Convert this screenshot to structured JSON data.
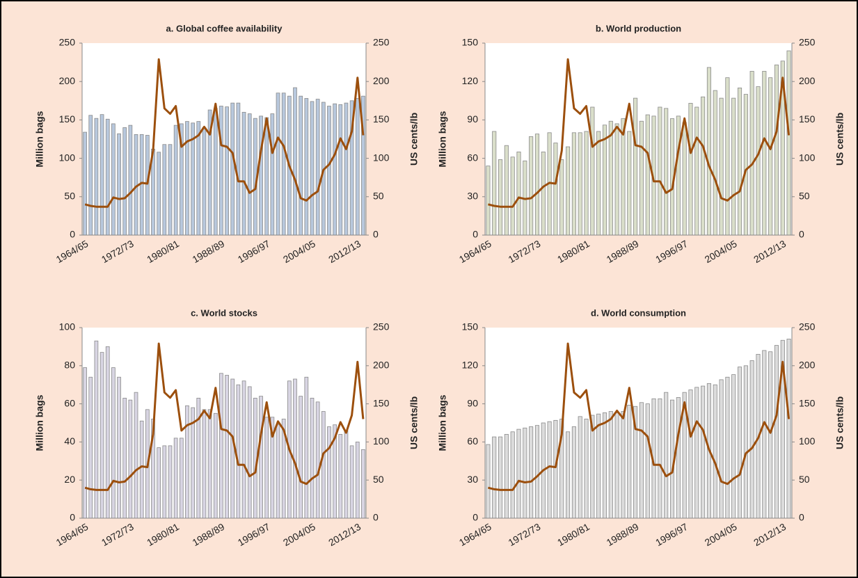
{
  "chart_data": [
    {
      "type": "bar",
      "title": "a. Global coffee availability",
      "y_label": "Million bags",
      "y2_label": "US cents/lb",
      "categories": [
        "1964/65",
        null,
        null,
        null,
        null,
        null,
        null,
        null,
        "1972/73",
        null,
        null,
        null,
        null,
        null,
        null,
        null,
        "1980/81",
        null,
        null,
        null,
        null,
        null,
        null,
        null,
        "1988/89",
        null,
        null,
        null,
        null,
        null,
        null,
        null,
        "1996/97",
        null,
        null,
        null,
        null,
        null,
        null,
        null,
        "2004/05",
        null,
        null,
        null,
        null,
        null,
        null,
        null,
        "2012/13",
        null
      ],
      "series": [
        {
          "color": "#b8c8dd",
          "values": [
            134,
            156,
            152,
            157,
            151,
            145,
            132,
            140,
            143,
            131,
            131,
            130,
            112,
            108,
            118,
            118,
            143,
            145,
            148,
            146,
            148,
            140,
            163,
            165,
            168,
            167,
            172,
            172,
            160,
            158,
            152,
            155,
            153,
            158,
            185,
            185,
            181,
            192,
            181,
            178,
            174,
            177,
            173,
            168,
            171,
            170,
            172,
            175,
            178,
            181
          ]
        },
        {
          "type": "line",
          "axis": "y2",
          "color": "#9c4f0d",
          "values": [
            40,
            38,
            37,
            37,
            37,
            49,
            47,
            48,
            55,
            63,
            68,
            67,
            110,
            229,
            165,
            158,
            168,
            115,
            122,
            125,
            130,
            141,
            131,
            171,
            117,
            115,
            107,
            70,
            70,
            55,
            60,
            110,
            152,
            107,
            127,
            116,
            90,
            72,
            48,
            45,
            52,
            57,
            85,
            92,
            105,
            126,
            112,
            135,
            205,
            130
          ]
        }
      ],
      "ylim": [
        0,
        250
      ],
      "yticks": [
        0,
        50,
        100,
        150,
        200,
        250
      ],
      "y2lim": [
        0,
        250
      ],
      "y2ticks": [
        0,
        50,
        100,
        150,
        200,
        250
      ]
    },
    {
      "type": "bar",
      "title": "b. World production",
      "y_label": "Million bags",
      "y2_label": "US cents/lb",
      "categories": [
        "1964/65",
        null,
        null,
        null,
        null,
        null,
        null,
        null,
        "1972/73",
        null,
        null,
        null,
        null,
        null,
        null,
        null,
        "1980/81",
        null,
        null,
        null,
        null,
        null,
        null,
        null,
        "1988/89",
        null,
        null,
        null,
        null,
        null,
        null,
        null,
        "1996/97",
        null,
        null,
        null,
        null,
        null,
        null,
        null,
        "2004/05",
        null,
        null,
        null,
        null,
        null,
        null,
        null,
        "2012/13",
        null
      ],
      "series": [
        {
          "color": "#dadfca",
          "values": [
            54,
            81,
            59,
            70,
            61,
            65,
            58,
            77,
            79,
            65,
            80,
            72,
            59,
            69,
            80,
            80,
            81,
            100,
            81,
            86,
            89,
            87,
            91,
            81,
            107,
            89,
            94,
            93,
            100,
            99,
            91,
            93,
            88,
            103,
            100,
            108,
            131,
            113,
            107,
            123,
            107,
            115,
            110,
            128,
            116,
            128,
            123,
            133,
            136,
            144
          ]
        },
        {
          "type": "line",
          "axis": "y2",
          "color": "#9c4f0d",
          "values": [
            40,
            38,
            37,
            37,
            37,
            49,
            47,
            48,
            55,
            63,
            68,
            67,
            110,
            229,
            165,
            158,
            168,
            115,
            122,
            125,
            130,
            141,
            131,
            171,
            117,
            115,
            107,
            70,
            70,
            55,
            60,
            110,
            152,
            107,
            127,
            116,
            90,
            72,
            48,
            45,
            52,
            57,
            85,
            92,
            105,
            126,
            112,
            135,
            205,
            130
          ]
        }
      ],
      "ylim": [
        0,
        150
      ],
      "yticks": [
        0,
        30,
        60,
        90,
        120,
        150
      ],
      "y2lim": [
        0,
        250
      ],
      "y2ticks": [
        0,
        50,
        100,
        150,
        200,
        250
      ]
    },
    {
      "type": "bar",
      "title": "c. World stocks",
      "y_label": "Million bags",
      "y2_label": "US cents/lb",
      "categories": [
        "1964/65",
        null,
        null,
        null,
        null,
        null,
        null,
        null,
        "1972/73",
        null,
        null,
        null,
        null,
        null,
        null,
        null,
        "1980/81",
        null,
        null,
        null,
        null,
        null,
        null,
        null,
        "1988/89",
        null,
        null,
        null,
        null,
        null,
        null,
        null,
        "1996/97",
        null,
        null,
        null,
        null,
        null,
        null,
        null,
        "2004/05",
        null,
        null,
        null,
        null,
        null,
        null,
        null,
        "2012/13",
        null
      ],
      "series": [
        {
          "color": "#d8d5e3",
          "values": [
            79,
            74,
            93,
            87,
            90,
            79,
            74,
            63,
            62,
            66,
            51,
            57,
            52,
            37,
            38,
            38,
            42,
            42,
            59,
            58,
            63,
            57,
            57,
            55,
            76,
            75,
            73,
            70,
            72,
            69,
            63,
            64,
            53,
            53,
            49,
            52,
            72,
            73,
            64,
            74,
            63,
            61,
            56,
            48,
            49,
            44,
            46,
            38,
            40,
            36
          ]
        },
        {
          "type": "line",
          "axis": "y2",
          "color": "#9c4f0d",
          "values": [
            40,
            38,
            37,
            37,
            37,
            49,
            47,
            48,
            55,
            63,
            68,
            67,
            110,
            229,
            165,
            158,
            168,
            115,
            122,
            125,
            130,
            141,
            131,
            171,
            117,
            115,
            107,
            70,
            70,
            55,
            60,
            110,
            152,
            107,
            127,
            116,
            90,
            72,
            48,
            45,
            52,
            57,
            85,
            92,
            105,
            126,
            112,
            135,
            205,
            130
          ]
        }
      ],
      "ylim": [
        0,
        100
      ],
      "yticks": [
        0,
        20,
        40,
        60,
        80,
        100
      ],
      "y2lim": [
        0,
        250
      ],
      "y2ticks": [
        0,
        50,
        100,
        150,
        200,
        250
      ]
    },
    {
      "type": "bar",
      "title": "d. World consumption",
      "y_label": "Million bags",
      "y2_label": "US cents/lb",
      "categories": [
        "1964/65",
        null,
        null,
        null,
        null,
        null,
        null,
        null,
        "1972/73",
        null,
        null,
        null,
        null,
        null,
        null,
        null,
        "1980/81",
        null,
        null,
        null,
        null,
        null,
        null,
        null,
        "1988/89",
        null,
        null,
        null,
        null,
        null,
        null,
        null,
        "1996/97",
        null,
        null,
        null,
        null,
        null,
        null,
        null,
        "2004/05",
        null,
        null,
        null,
        null,
        null,
        null,
        null,
        "2012/13",
        null
      ],
      "series": [
        {
          "color": "#dcdcdc",
          "values": [
            58,
            64,
            64,
            66,
            68,
            70,
            71,
            72,
            73,
            75,
            76,
            77,
            78,
            68,
            72,
            80,
            78,
            81,
            82,
            83,
            84,
            83,
            84,
            89,
            88,
            91,
            90,
            94,
            94,
            99,
            93,
            95,
            99,
            101,
            103,
            104,
            106,
            105,
            109,
            111,
            113,
            119,
            120,
            124,
            129,
            132,
            131,
            136,
            140,
            141
          ]
        },
        {
          "type": "line",
          "axis": "y2",
          "color": "#9c4f0d",
          "values": [
            40,
            38,
            37,
            37,
            37,
            49,
            47,
            48,
            55,
            63,
            68,
            67,
            110,
            229,
            165,
            158,
            168,
            115,
            122,
            125,
            130,
            141,
            131,
            171,
            117,
            115,
            107,
            70,
            70,
            55,
            60,
            110,
            152,
            107,
            127,
            116,
            90,
            72,
            48,
            45,
            52,
            57,
            85,
            92,
            105,
            126,
            112,
            135,
            205,
            130
          ]
        }
      ],
      "ylim": [
        0,
        150
      ],
      "yticks": [
        0,
        30,
        60,
        90,
        120,
        150
      ],
      "y2lim": [
        0,
        250
      ],
      "y2ticks": [
        0,
        50,
        100,
        150,
        200,
        250
      ]
    }
  ]
}
